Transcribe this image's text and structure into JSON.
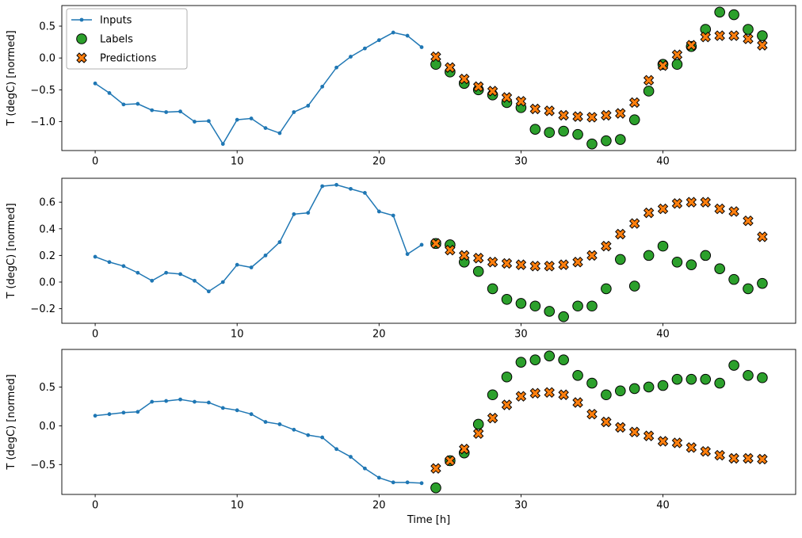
{
  "figure": {
    "xlabel": "Time [h]",
    "ylabel": "T (degC) [normed]",
    "colors": {
      "inputs": "#1f77b4",
      "labels": "#2ca02c",
      "predictions": "#ff7f0e",
      "marker_edge": "#000000",
      "axes_edge": "#000000",
      "legend_border": "#b0b0b0",
      "background": "#ffffff"
    },
    "legend": {
      "position": "upper-left-first-subplot",
      "entries": [
        {
          "label": "Inputs",
          "marker": "line-dot",
          "color": "#1f77b4"
        },
        {
          "label": "Labels",
          "marker": "circle",
          "color": "#2ca02c"
        },
        {
          "label": "Predictions",
          "marker": "x",
          "color": "#ff7f0e"
        }
      ]
    }
  },
  "chart_data": [
    {
      "type": "line",
      "title": "",
      "xlabel": "",
      "ylabel": "T (degC) [normed]",
      "xticks": [
        0,
        10,
        20,
        30,
        40
      ],
      "yticks": [
        0.5,
        0.0,
        -0.5,
        -1.0
      ],
      "xlim": [
        -2.35,
        49.35
      ],
      "legend": true,
      "series": [
        {
          "name": "Inputs",
          "type": "line",
          "color": "#1f77b4",
          "x": [
            0,
            1,
            2,
            3,
            4,
            5,
            6,
            7,
            8,
            9,
            10,
            11,
            12,
            13,
            14,
            15,
            16,
            17,
            18,
            19,
            20,
            21,
            22,
            23
          ],
          "y": [
            -0.4,
            -0.55,
            -0.73,
            -0.72,
            -0.82,
            -0.85,
            -0.84,
            -1.0,
            -0.99,
            -1.35,
            -0.97,
            -0.95,
            -1.1,
            -1.18,
            -0.85,
            -0.75,
            -0.45,
            -0.15,
            0.02,
            0.15,
            0.28,
            0.4,
            0.35,
            0.17
          ]
        },
        {
          "name": "Labels",
          "type": "scatter-circle",
          "color": "#2ca02c",
          "x": [
            24,
            25,
            26,
            27,
            28,
            29,
            30,
            31,
            32,
            33,
            34,
            35,
            36,
            37,
            38,
            39,
            40,
            41,
            42,
            43,
            44,
            45,
            46,
            47
          ],
          "y": [
            -0.1,
            -0.22,
            -0.4,
            -0.5,
            -0.58,
            -0.7,
            -0.78,
            -1.12,
            -1.17,
            -1.15,
            -1.2,
            -1.35,
            -1.3,
            -1.28,
            -0.97,
            -0.52,
            -0.1,
            -0.1,
            0.18,
            0.45,
            0.72,
            0.68,
            0.45,
            0.35
          ]
        },
        {
          "name": "Predictions",
          "type": "scatter-x",
          "color": "#ff7f0e",
          "x": [
            24,
            25,
            26,
            27,
            28,
            29,
            30,
            31,
            32,
            33,
            34,
            35,
            36,
            37,
            38,
            39,
            40,
            41,
            42,
            43,
            44,
            45,
            46,
            47
          ],
          "y": [
            0.02,
            -0.15,
            -0.33,
            -0.45,
            -0.52,
            -0.62,
            -0.68,
            -0.8,
            -0.83,
            -0.9,
            -0.92,
            -0.93,
            -0.9,
            -0.87,
            -0.7,
            -0.35,
            -0.12,
            0.05,
            0.2,
            0.33,
            0.35,
            0.35,
            0.3,
            0.2
          ]
        }
      ]
    },
    {
      "type": "line",
      "title": "",
      "xlabel": "",
      "ylabel": "T (degC) [normed]",
      "xticks": [
        0,
        10,
        20,
        30,
        40
      ],
      "yticks": [
        0.6,
        0.4,
        0.2,
        0.0,
        -0.2
      ],
      "xlim": [
        -2.35,
        49.35
      ],
      "legend": false,
      "series": [
        {
          "name": "Inputs",
          "type": "line",
          "color": "#1f77b4",
          "x": [
            0,
            1,
            2,
            3,
            4,
            5,
            6,
            7,
            8,
            9,
            10,
            11,
            12,
            13,
            14,
            15,
            16,
            17,
            18,
            19,
            20,
            21,
            22,
            23
          ],
          "y": [
            0.19,
            0.15,
            0.12,
            0.07,
            0.01,
            0.07,
            0.06,
            0.01,
            -0.07,
            0.0,
            0.13,
            0.11,
            0.2,
            0.3,
            0.51,
            0.52,
            0.72,
            0.73,
            0.7,
            0.67,
            0.53,
            0.5,
            0.21,
            0.28
          ]
        },
        {
          "name": "Labels",
          "type": "scatter-circle",
          "color": "#2ca02c",
          "x": [
            24,
            25,
            26,
            27,
            28,
            29,
            30,
            31,
            32,
            33,
            34,
            35,
            36,
            37,
            38,
            39,
            40,
            41,
            42,
            43,
            44,
            45,
            46,
            47
          ],
          "y": [
            0.29,
            0.28,
            0.15,
            0.08,
            -0.05,
            -0.13,
            -0.16,
            -0.18,
            -0.22,
            -0.26,
            -0.18,
            -0.18,
            -0.05,
            0.17,
            -0.03,
            0.2,
            0.27,
            0.15,
            0.13,
            0.2,
            0.1,
            0.02,
            -0.05,
            -0.01
          ]
        },
        {
          "name": "Predictions",
          "type": "scatter-x",
          "color": "#ff7f0e",
          "x": [
            24,
            25,
            26,
            27,
            28,
            29,
            30,
            31,
            32,
            33,
            34,
            35,
            36,
            37,
            38,
            39,
            40,
            41,
            42,
            43,
            44,
            45,
            46,
            47
          ],
          "y": [
            0.29,
            0.24,
            0.2,
            0.18,
            0.15,
            0.14,
            0.13,
            0.12,
            0.12,
            0.13,
            0.15,
            0.2,
            0.27,
            0.36,
            0.44,
            0.52,
            0.55,
            0.59,
            0.6,
            0.6,
            0.55,
            0.53,
            0.46,
            0.34
          ]
        }
      ]
    },
    {
      "type": "line",
      "title": "",
      "xlabel": "Time [h]",
      "ylabel": "T (degC) [normed]",
      "xticks": [
        0,
        10,
        20,
        30,
        40
      ],
      "yticks": [
        0.5,
        0.0,
        -0.5
      ],
      "xlim": [
        -2.35,
        49.35
      ],
      "legend": false,
      "series": [
        {
          "name": "Inputs",
          "type": "line",
          "color": "#1f77b4",
          "x": [
            0,
            1,
            2,
            3,
            4,
            5,
            6,
            7,
            8,
            9,
            10,
            11,
            12,
            13,
            14,
            15,
            16,
            17,
            18,
            19,
            20,
            21,
            22,
            23
          ],
          "y": [
            0.13,
            0.15,
            0.17,
            0.18,
            0.31,
            0.32,
            0.34,
            0.31,
            0.3,
            0.23,
            0.2,
            0.15,
            0.05,
            0.02,
            -0.05,
            -0.12,
            -0.15,
            -0.3,
            -0.4,
            -0.55,
            -0.67,
            -0.73,
            -0.73,
            -0.74
          ]
        },
        {
          "name": "Labels",
          "type": "scatter-circle",
          "color": "#2ca02c",
          "x": [
            24,
            25,
            26,
            27,
            28,
            29,
            30,
            31,
            32,
            33,
            34,
            35,
            36,
            37,
            38,
            39,
            40,
            41,
            42,
            43,
            44,
            45,
            46,
            47
          ],
          "y": [
            -0.8,
            -0.45,
            -0.35,
            0.02,
            0.4,
            0.63,
            0.82,
            0.85,
            0.9,
            0.85,
            0.65,
            0.55,
            0.4,
            0.45,
            0.48,
            0.5,
            0.52,
            0.6,
            0.6,
            0.6,
            0.55,
            0.78,
            0.65,
            0.62
          ]
        },
        {
          "name": "Predictions",
          "type": "scatter-x",
          "color": "#ff7f0e",
          "x": [
            24,
            25,
            26,
            27,
            28,
            29,
            30,
            31,
            32,
            33,
            34,
            35,
            36,
            37,
            38,
            39,
            40,
            41,
            42,
            43,
            44,
            45,
            46,
            47
          ],
          "y": [
            -0.55,
            -0.45,
            -0.3,
            -0.1,
            0.1,
            0.27,
            0.38,
            0.42,
            0.43,
            0.4,
            0.3,
            0.15,
            0.05,
            -0.02,
            -0.08,
            -0.13,
            -0.2,
            -0.22,
            -0.28,
            -0.33,
            -0.38,
            -0.42,
            -0.42,
            -0.43
          ]
        }
      ]
    }
  ]
}
